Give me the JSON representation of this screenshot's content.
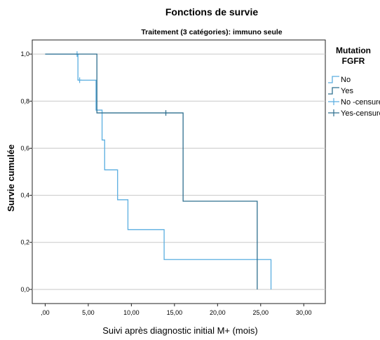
{
  "chart_data": {
    "type": "line",
    "subtype": "kaplan-meier-step",
    "title": "Fonctions de survie",
    "subtitle": "Traitement (3 catégories): immuno seule",
    "xlabel": "Suivi après diagnostic initial M+ (mois)",
    "ylabel": "Survie cumulée",
    "xlim": [
      -1.5,
      32.5
    ],
    "ylim": [
      -0.06,
      1.06
    ],
    "x_ticks": [
      0,
      5,
      10,
      15,
      20,
      25,
      30
    ],
    "x_tick_labels": [
      ",00",
      "5,00",
      "10,00",
      "15,00",
      "20,00",
      "25,00",
      "30,00"
    ],
    "y_ticks": [
      0,
      0.2,
      0.4,
      0.6,
      0.8,
      1.0
    ],
    "y_tick_labels": [
      "0,0",
      "0,2",
      "0,4",
      "0,6",
      "0,8",
      "1,0"
    ],
    "grid": "horizontal",
    "legend": {
      "title_lines": [
        "Mutation",
        "FGFR"
      ],
      "placement": "right",
      "entries": [
        {
          "label": "No",
          "kind": "step",
          "color": "#5aaee0"
        },
        {
          "label": "Yes",
          "kind": "step",
          "color": "#2f6f8f"
        },
        {
          "label": "No -censuré",
          "kind": "cross",
          "color": "#5aaee0"
        },
        {
          "label": "Yes-censuré",
          "kind": "cross",
          "color": "#2f6f8f"
        }
      ]
    },
    "series": [
      {
        "name": "No",
        "color": "#5aaee0",
        "steps": [
          [
            0,
            1.0
          ],
          [
            3.8,
            0.889
          ],
          [
            5.9,
            0.762
          ],
          [
            6.6,
            0.635
          ],
          [
            6.9,
            0.508
          ],
          [
            8.4,
            0.381
          ],
          [
            9.6,
            0.254
          ],
          [
            13.8,
            0.127
          ],
          [
            26.2,
            0.0
          ]
        ],
        "end_x": 26.2,
        "censored": [
          [
            3.7,
            1.0
          ],
          [
            4.0,
            0.889
          ]
        ]
      },
      {
        "name": "Yes",
        "color": "#2f6f8f",
        "steps": [
          [
            0,
            1.0
          ],
          [
            6.0,
            0.75
          ],
          [
            16.0,
            0.375
          ],
          [
            24.6,
            0.0
          ]
        ],
        "end_x": 24.6,
        "censored": [
          [
            14.0,
            0.75
          ]
        ]
      }
    ]
  }
}
